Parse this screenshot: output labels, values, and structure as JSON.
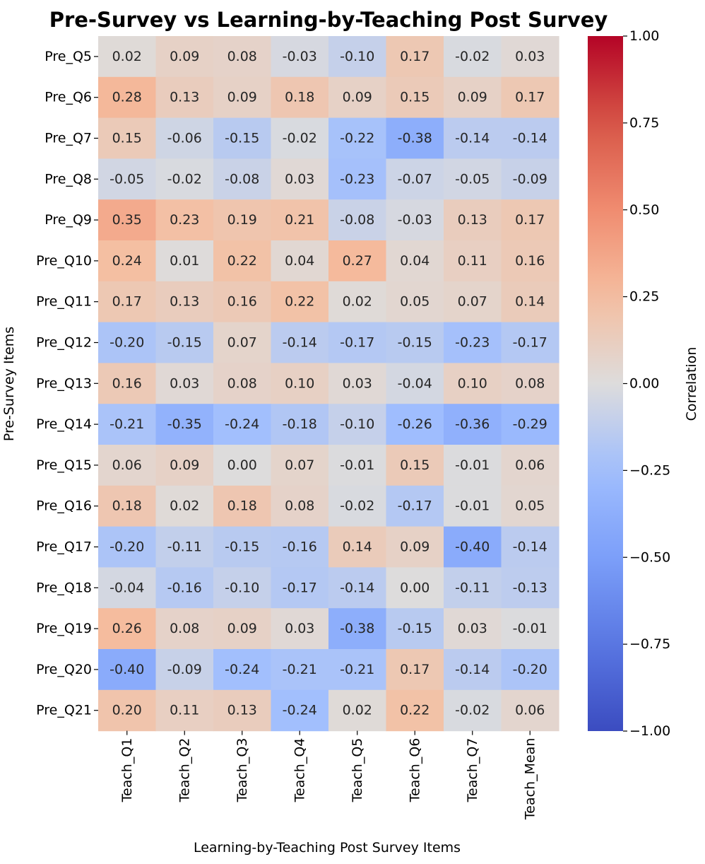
{
  "chart_data": {
    "type": "heatmap",
    "title": "Pre-Survey vs Learning-by-Teaching Post Survey",
    "xlabel": "Learning-by-Teaching Post Survey Items",
    "ylabel": "Pre-Survey Items",
    "colorbar_label": "Correlation",
    "colormap": "coolwarm",
    "vmin": -1.0,
    "vmax": 1.0,
    "colorbar_ticks": [
      "1.00",
      "0.75",
      "0.50",
      "0.25",
      "0.00",
      "−0.25",
      "−0.50",
      "−0.75",
      "−1.00"
    ],
    "colorbar_tick_values": [
      1.0,
      0.75,
      0.5,
      0.25,
      0.0,
      -0.25,
      -0.5,
      -0.75,
      -1.0
    ],
    "columns": [
      "Teach_Q1",
      "Teach_Q2",
      "Teach_Q3",
      "Teach_Q4",
      "Teach_Q5",
      "Teach_Q6",
      "Teach_Q7",
      "Teach_Mean"
    ],
    "rows": [
      "Pre_Q5",
      "Pre_Q6",
      "Pre_Q7",
      "Pre_Q8",
      "Pre_Q9",
      "Pre_Q10",
      "Pre_Q11",
      "Pre_Q12",
      "Pre_Q13",
      "Pre_Q14",
      "Pre_Q15",
      "Pre_Q16",
      "Pre_Q17",
      "Pre_Q18",
      "Pre_Q19",
      "Pre_Q20",
      "Pre_Q21"
    ],
    "values": [
      [
        0.02,
        0.09,
        0.08,
        -0.03,
        -0.1,
        0.17,
        -0.02,
        0.03
      ],
      [
        0.28,
        0.13,
        0.09,
        0.18,
        0.09,
        0.15,
        0.09,
        0.17
      ],
      [
        0.15,
        -0.06,
        -0.15,
        -0.02,
        -0.22,
        -0.38,
        -0.14,
        -0.14
      ],
      [
        -0.05,
        -0.02,
        -0.08,
        0.03,
        -0.23,
        -0.07,
        -0.05,
        -0.09
      ],
      [
        0.35,
        0.23,
        0.19,
        0.21,
        -0.08,
        -0.03,
        0.13,
        0.17
      ],
      [
        0.24,
        0.01,
        0.22,
        0.04,
        0.27,
        0.04,
        0.11,
        0.16
      ],
      [
        0.17,
        0.13,
        0.16,
        0.22,
        0.02,
        0.05,
        0.07,
        0.14
      ],
      [
        -0.2,
        -0.15,
        0.07,
        -0.14,
        -0.17,
        -0.15,
        -0.23,
        -0.17
      ],
      [
        0.16,
        0.03,
        0.08,
        0.1,
        0.03,
        -0.04,
        0.1,
        0.08
      ],
      [
        -0.21,
        -0.35,
        -0.24,
        -0.18,
        -0.1,
        -0.26,
        -0.36,
        -0.29
      ],
      [
        0.06,
        0.09,
        0.0,
        0.07,
        -0.01,
        0.15,
        -0.01,
        0.06
      ],
      [
        0.18,
        0.02,
        0.18,
        0.08,
        -0.02,
        -0.17,
        -0.01,
        0.05
      ],
      [
        -0.2,
        -0.11,
        -0.15,
        -0.16,
        0.14,
        0.09,
        -0.4,
        -0.14
      ],
      [
        -0.04,
        -0.16,
        -0.1,
        -0.17,
        -0.14,
        0.0,
        -0.11,
        -0.13
      ],
      [
        0.26,
        0.08,
        0.09,
        0.03,
        -0.38,
        -0.15,
        0.03,
        -0.01
      ],
      [
        -0.4,
        -0.09,
        -0.24,
        -0.21,
        -0.21,
        0.17,
        -0.14,
        -0.2
      ],
      [
        0.2,
        0.11,
        0.13,
        -0.24,
        0.02,
        0.22,
        -0.02,
        0.06
      ]
    ]
  }
}
